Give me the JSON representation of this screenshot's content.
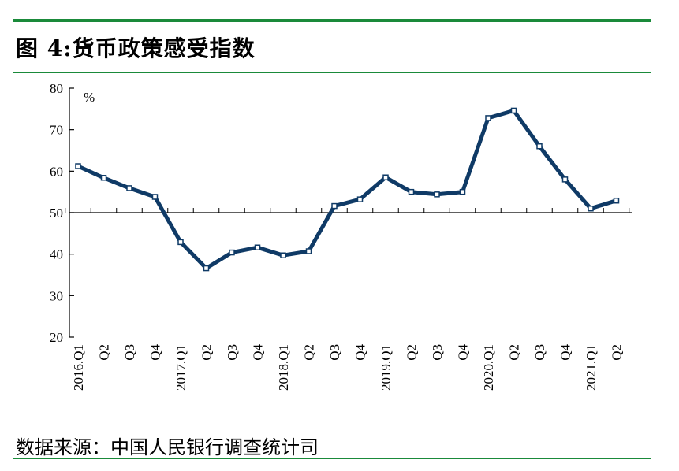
{
  "header": {
    "title": "图 4:货币政策感受指数"
  },
  "footer": {
    "source": "数据来源：中国人民银行调查统计司"
  },
  "chart_data": {
    "type": "line",
    "title": "图 4:货币政策感受指数",
    "unit_label": "%",
    "xlabel": "",
    "ylabel": "",
    "ylim": [
      20,
      80
    ],
    "yticks": [
      20,
      30,
      40,
      50,
      60,
      70,
      80
    ],
    "baseline": 50,
    "categories": [
      "2016Q1",
      "2016Q2",
      "2016Q3",
      "2016Q4",
      "2017Q1",
      "2017Q2",
      "2017Q3",
      "2017Q4",
      "2018Q1",
      "2018Q2",
      "2018Q3",
      "2018Q4",
      "2019Q1",
      "2019Q2",
      "2019Q3",
      "2019Q4",
      "2020Q1",
      "2020Q2",
      "2020Q3",
      "2020Q4",
      "2021Q1",
      "2021Q2"
    ],
    "tick_labels": [
      "2016.Q1",
      "Q2",
      "Q3",
      "Q4",
      "2017.Q1",
      "Q2",
      "Q3",
      "Q4",
      "2018.Q1",
      "Q2",
      "Q3",
      "Q4",
      "2019.Q1",
      "Q2",
      "Q3",
      "Q4",
      "2020.Q1",
      "Q2",
      "Q3",
      "Q4",
      "2021.Q1",
      "Q2"
    ],
    "series": [
      {
        "name": "货币政策感受指数",
        "values": [
          61.2,
          58.4,
          55.9,
          53.8,
          42.9,
          36.6,
          40.4,
          41.6,
          39.7,
          40.7,
          51.6,
          53.2,
          58.5,
          55.0,
          54.4,
          55.0,
          72.8,
          74.6,
          66.0,
          58.0,
          51.0,
          52.9
        ]
      }
    ],
    "colors": {
      "line": "#0f3a66",
      "marker_fill": "#ffffff",
      "axis": "#000000"
    }
  }
}
